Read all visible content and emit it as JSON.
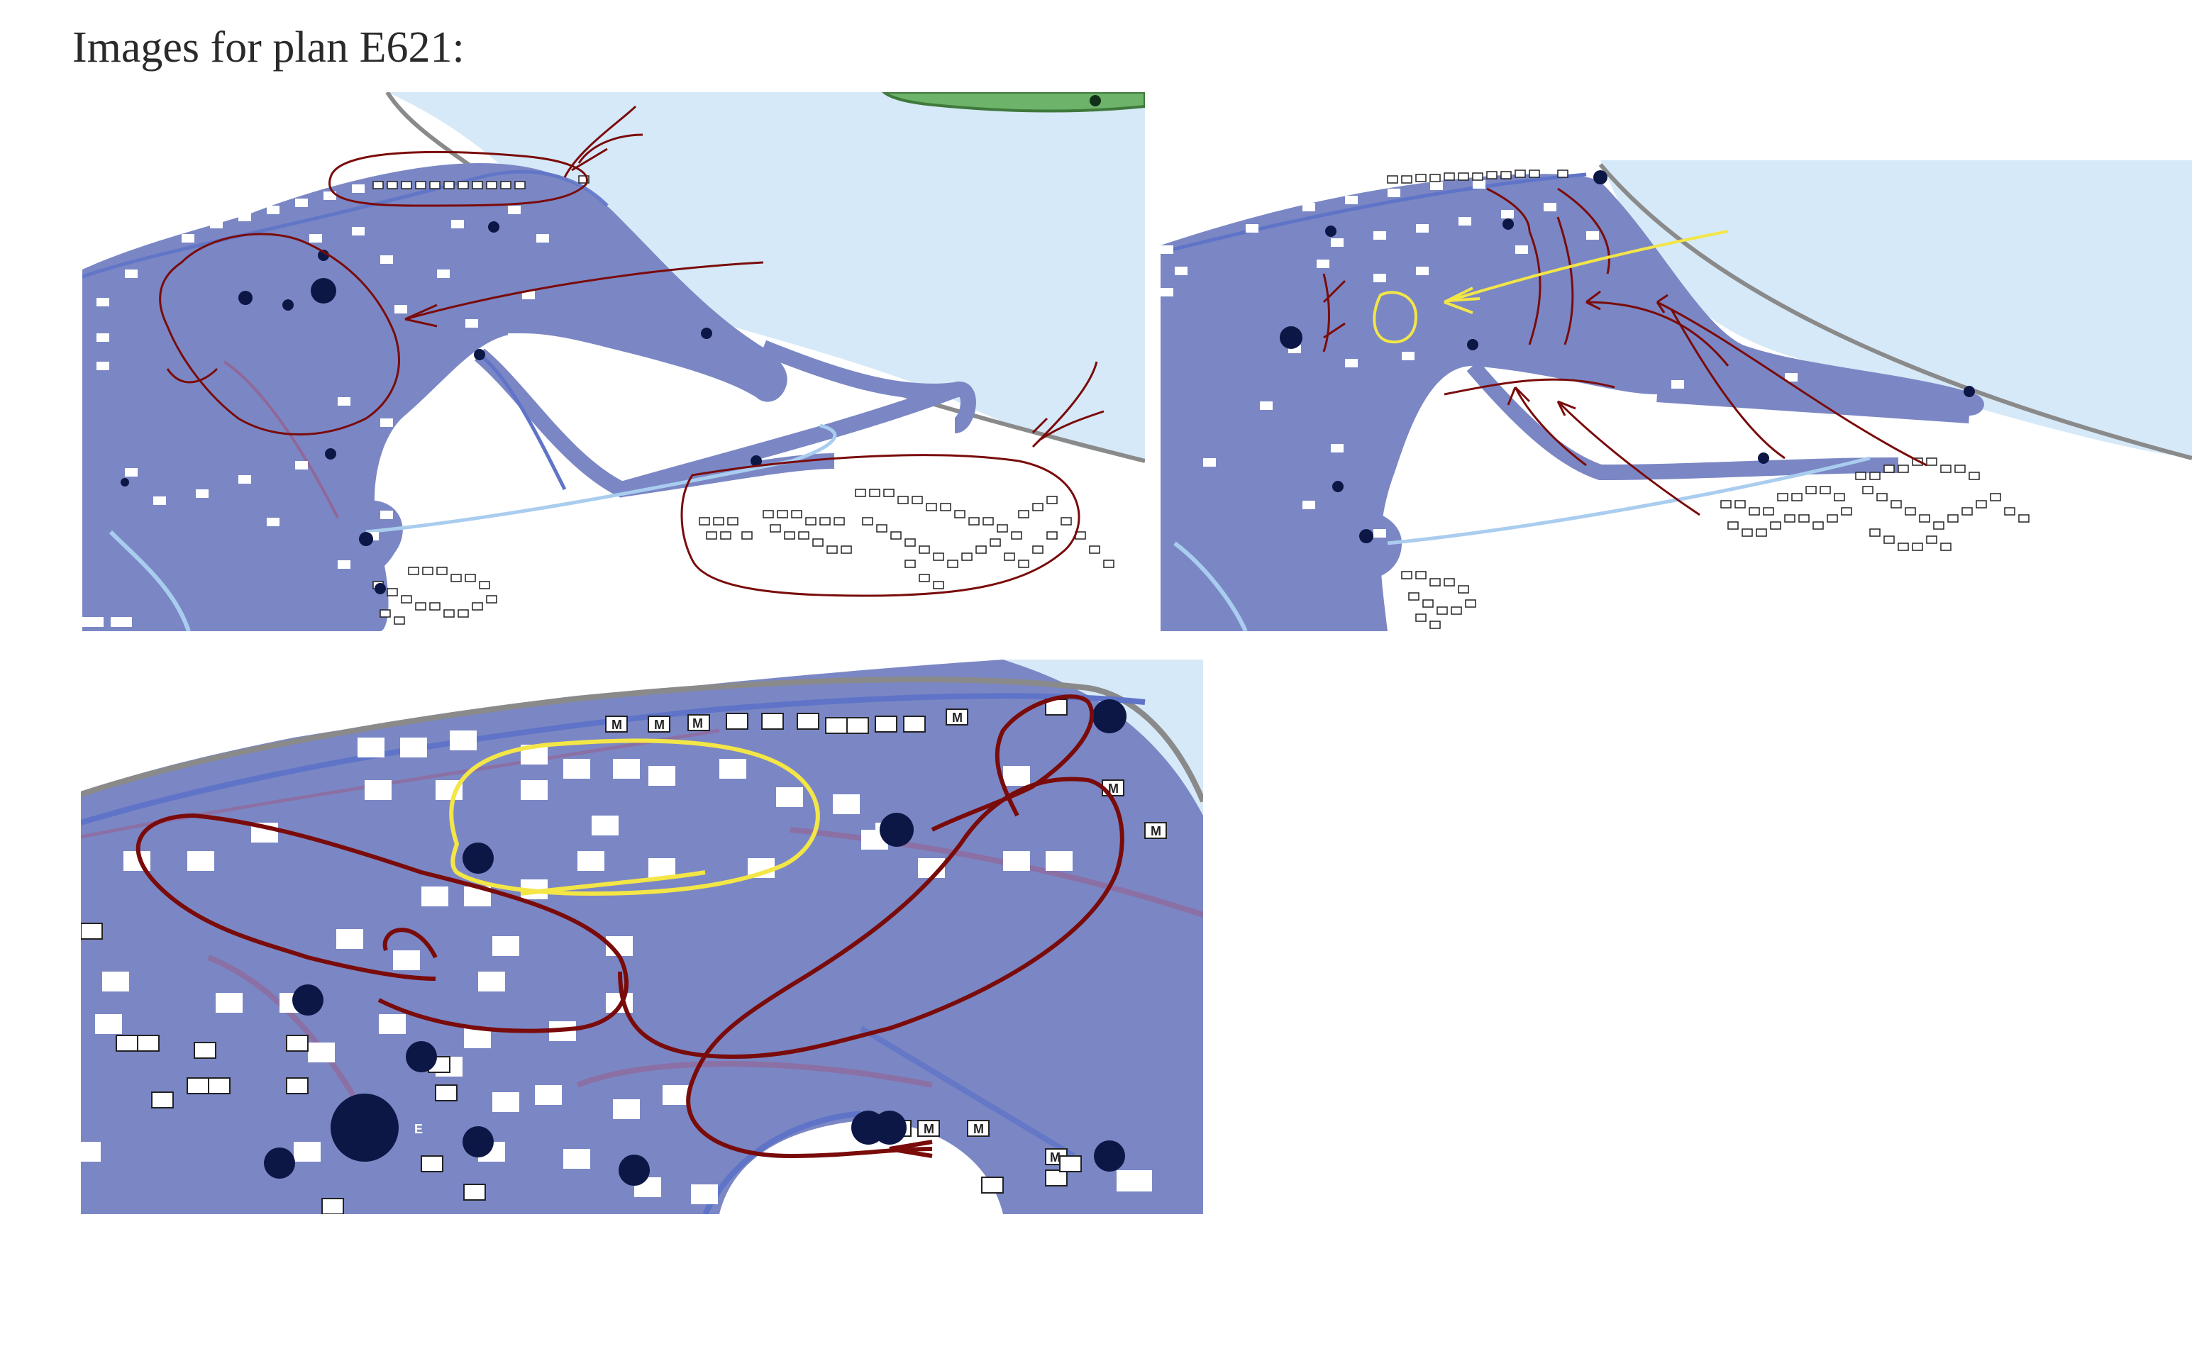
{
  "page": {
    "title": "Images for plan E621:"
  },
  "images": [
    {
      "name": "plan-image-1",
      "description_colors": {
        "land": "#7b87c4",
        "water": "#d6e9f8",
        "route": "#5f74c8",
        "annotation": "#7a0b0b"
      }
    },
    {
      "name": "plan-image-2",
      "description_colors": {
        "land": "#7b87c4",
        "water": "#d6e9f8",
        "route": "#5f74c8",
        "annotation": "#7a0b0b",
        "highlight": "#f3e646"
      }
    },
    {
      "name": "plan-image-3",
      "description_colors": {
        "land": "#7b87c4",
        "water": "#d6e9f8",
        "route": "#5f74c8",
        "annotation": "#7a0b0b",
        "highlight": "#f3e646"
      }
    }
  ],
  "colors": {
    "land": "#7b87c4",
    "water": "#d6e9f8",
    "green": "#6db36a",
    "coast": "#8a8a8a",
    "route": "#5f74c8",
    "stop": "#0d1746",
    "annotation": "#7a0b0b",
    "highlight": "#f3e646"
  },
  "icons": [
    "mail-icon",
    "building-icon",
    "stop-icon"
  ],
  "marker_labels": {
    "m": "M",
    "e": "E"
  }
}
